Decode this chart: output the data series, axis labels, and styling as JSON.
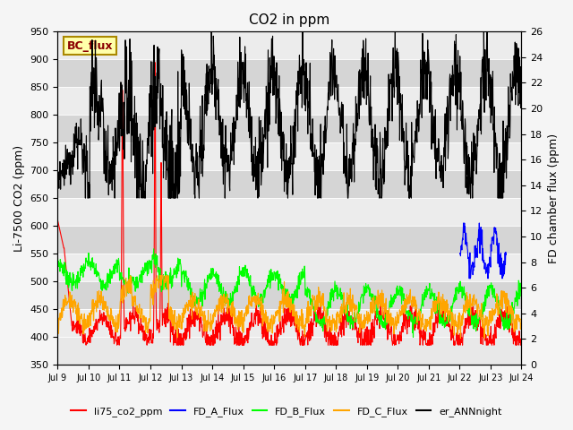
{
  "title": "CO2 in ppm",
  "ylabel_left": "Li-7500 CO2 (ppm)",
  "ylabel_right": "FD chamber flux (ppm)",
  "ylim_left": [
    350,
    950
  ],
  "ylim_right": [
    0,
    26
  ],
  "yticks_left": [
    350,
    400,
    450,
    500,
    550,
    600,
    650,
    700,
    750,
    800,
    850,
    900,
    950
  ],
  "yticks_right": [
    0,
    2,
    4,
    6,
    8,
    10,
    12,
    14,
    16,
    18,
    20,
    22,
    24,
    26
  ],
  "xticklabels": [
    "Jul 9",
    "Jul 10",
    "Jul 11",
    "Jul 12",
    "Jul 13",
    "Jul 14",
    "Jul 15",
    "Jul 16",
    "Jul 17",
    "Jul 18",
    "Jul 19",
    "Jul 20",
    "Jul 21",
    "Jul 22",
    "Jul 23",
    "Jul 24"
  ],
  "bc_flux_label": "BC_flux",
  "legend_entries": [
    "li75_co2_ppm",
    "FD_A_Flux",
    "FD_B_Flux",
    "FD_C_Flux",
    "er_ANNnight"
  ],
  "legend_colors": [
    "red",
    "blue",
    "lime",
    "orange",
    "black"
  ],
  "fig_facecolor": "#f5f5f5",
  "ax_facecolor": "#e8e8e8",
  "band_color_light": "#d8d8d8",
  "title_fontsize": 11
}
